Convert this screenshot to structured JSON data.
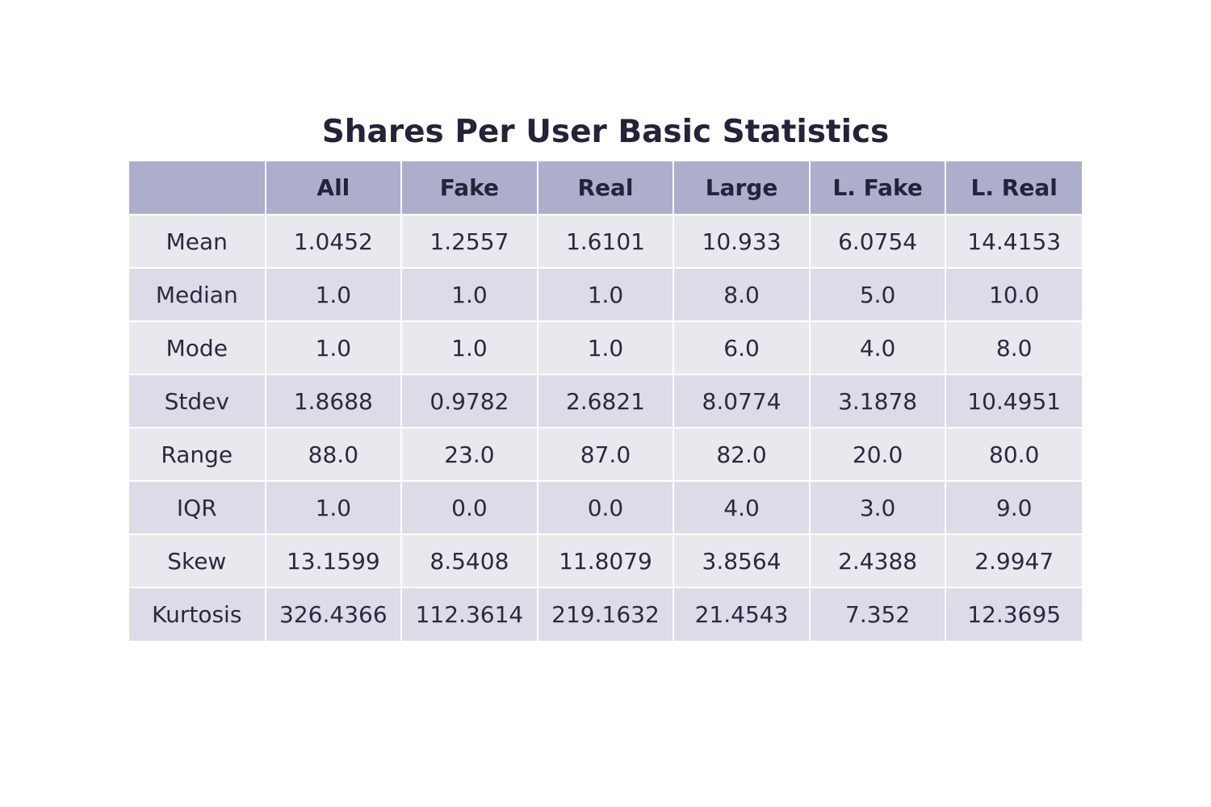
{
  "chart_data": {
    "type": "table",
    "title": "Shares Per User Basic Statistics",
    "columns": [
      "",
      "All",
      "Fake",
      "Real",
      "Large",
      "L. Fake",
      "L. Real"
    ],
    "rows": [
      {
        "label": "Mean",
        "values": [
          "1.0452",
          "1.2557",
          "1.6101",
          "10.933",
          "6.0754",
          "14.4153"
        ]
      },
      {
        "label": "Median",
        "values": [
          "1.0",
          "1.0",
          "1.0",
          "8.0",
          "5.0",
          "10.0"
        ]
      },
      {
        "label": "Mode",
        "values": [
          "1.0",
          "1.0",
          "1.0",
          "6.0",
          "4.0",
          "8.0"
        ]
      },
      {
        "label": "Stdev",
        "values": [
          "1.8688",
          "0.9782",
          "2.6821",
          "8.0774",
          "3.1878",
          "10.4951"
        ]
      },
      {
        "label": "Range",
        "values": [
          "88.0",
          "23.0",
          "87.0",
          "82.0",
          "20.0",
          "80.0"
        ]
      },
      {
        "label": "IQR",
        "values": [
          "1.0",
          "0.0",
          "0.0",
          "4.0",
          "3.0",
          "9.0"
        ]
      },
      {
        "label": "Skew",
        "values": [
          "13.1599",
          "8.5408",
          "11.8079",
          "3.8564",
          "2.4388",
          "2.9947"
        ]
      },
      {
        "label": "Kurtosis",
        "values": [
          "326.4366",
          "112.3614",
          "219.1632",
          "21.4543",
          "7.352",
          "12.3695"
        ]
      }
    ],
    "colors": {
      "header_fill": "#adadcc",
      "row_fill_odd": "#e8e8ef",
      "row_fill_even": "#dcdce8",
      "text": "#2a2a3e"
    }
  }
}
